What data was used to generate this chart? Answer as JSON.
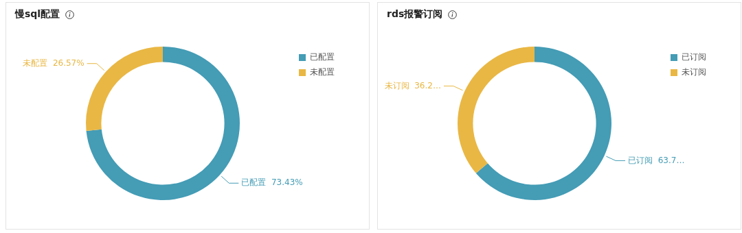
{
  "chart_data": [
    {
      "type": "donut",
      "title": "慢sql配置",
      "categories": [
        "已配置",
        "未配置"
      ],
      "values": [
        73.43,
        26.57
      ],
      "colors": [
        "#449cb5",
        "#e9b744"
      ],
      "value_labels": [
        "73.43%",
        "26.57%"
      ],
      "legend": "top right"
    },
    {
      "type": "donut",
      "title": "rds报警订阅",
      "categories": [
        "已订阅",
        "未订阅"
      ],
      "values": [
        63.75,
        36.25
      ],
      "colors": [
        "#449cb5",
        "#e9b744"
      ],
      "value_labels": [
        "63.7…",
        "36.2…"
      ],
      "legend": "top right"
    }
  ]
}
